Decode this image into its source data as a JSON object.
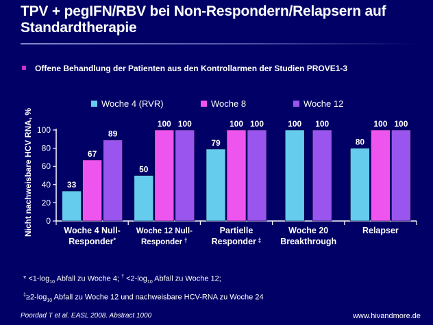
{
  "slide": {
    "title": "TPV + pegIFN/RBV bei Non-Respondern/Relapsern auf Standardtherapie",
    "bullet": "Offene Behandlung der Patienten aus den Kontrollarmen der Studien  PROVE1-3",
    "footnote1": {
      "p1": "* <1-log",
      "sub1": "10",
      "p2": " Abfall zu Woche 4; ",
      "sup1": "†",
      "p3": " <2-log",
      "sub2": "10",
      "p4": " Abfall zu Woche 12;"
    },
    "footnote2": {
      "sup1": "‡",
      "p1": "≥2-log",
      "sub1": "10",
      "p2": " Abfall zu Woche 12 und nachweisbare HCV-RNA zu Woche 24"
    },
    "source": "Poordad T et al. EASL 2008. Abstract  1000",
    "url": "www.hivandmore.de",
    "colors": {
      "background": "#000066",
      "bullet": "#cc33cc"
    }
  },
  "chart_data": {
    "type": "bar",
    "ylabel": "Nicht nachweisbare  HCV RNA, %",
    "ylim": [
      0,
      100
    ],
    "yticks": [
      0,
      20,
      40,
      60,
      80,
      100
    ],
    "legend_position": "top",
    "categories": [
      {
        "line1": "Woche 4 Null-",
        "line2": "Responder",
        "mark": "*"
      },
      {
        "line1": "Woche 12 Null-",
        "line2": "Responder",
        "mark": " †"
      },
      {
        "line1": "Partielle",
        "line2": "Responder",
        "mark": " ‡"
      },
      {
        "line1": "Woche 20",
        "line2": "Breakthrough",
        "mark": ""
      },
      {
        "line1": "Relapser",
        "line2": "",
        "mark": ""
      }
    ],
    "series": [
      {
        "name": "Woche 4 (RVR)",
        "color": "#66ccee",
        "values": [
          33,
          50,
          79,
          100,
          80
        ]
      },
      {
        "name": "Woche 8",
        "color": "#ee55ee",
        "values": [
          67,
          100,
          100,
          null,
          100
        ]
      },
      {
        "name": "Woche 12",
        "color": "#9955ee",
        "values": [
          89,
          100,
          100,
          100,
          100
        ]
      }
    ]
  }
}
